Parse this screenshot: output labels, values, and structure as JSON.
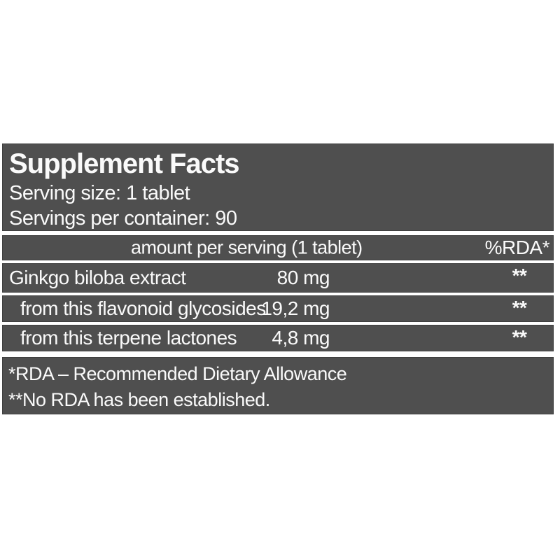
{
  "panel": {
    "title": "Supplement Facts",
    "serving_size": "Serving size: 1 tablet",
    "servings_per_container": "Servings per container: 90",
    "columns": {
      "amount": "amount per serving (1 tablet)",
      "rda": "%RDA*"
    },
    "rows": [
      {
        "name": "Ginkgo biloba extract",
        "amount": "80 mg",
        "rda": "**"
      },
      {
        "name": "from this flavonoid glycosides",
        "amount": "19,2 mg",
        "rda": "**"
      },
      {
        "name": "from this terpene lactones",
        "amount": "4,8 mg",
        "rda": "**"
      }
    ],
    "footnotes": [
      "*RDA – Recommended Dietary Allowance",
      "**No RDA has been established."
    ],
    "colors": {
      "block_bg": "#4f4f4f",
      "block_border": "#3f3f3f",
      "text": "#fafafa",
      "page_bg": "#ffffff"
    }
  }
}
